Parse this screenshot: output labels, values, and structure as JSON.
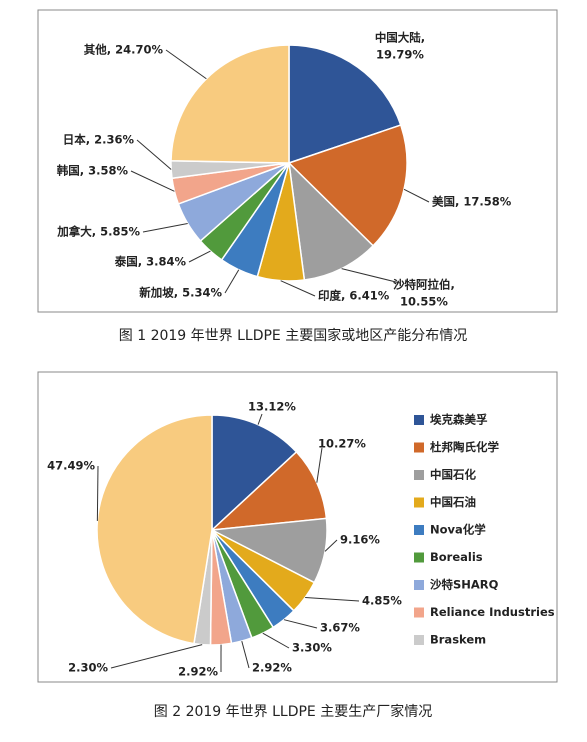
{
  "chart_data": [
    {
      "type": "pie",
      "caption": "图 1  2019 年世界 LLDPE 主要国家或地区产能分布情况",
      "values": [
        19.79,
        17.58,
        10.55,
        6.41,
        5.34,
        3.84,
        5.85,
        3.58,
        2.36,
        24.7
      ],
      "value_labels": [
        [
          "中国大陆,",
          "19.79%"
        ],
        [
          "美国, 17.58%"
        ],
        [
          "沙特阿拉伯,",
          "10.55%"
        ],
        [
          "印度, 6.41%"
        ],
        [
          "新加坡, 5.34%"
        ],
        [
          "泰国, 3.84%"
        ],
        [
          "加拿大, 5.85%"
        ],
        [
          "韩国, 3.58%"
        ],
        [
          "日本, 2.36%"
        ],
        [
          "其他, 24.70%"
        ]
      ],
      "colors": [
        "#2f5597",
        "#d0692a",
        "#9e9e9e",
        "#e3aa1c",
        "#3d7cc0",
        "#519a3c",
        "#8ea9db",
        "#f2a58b",
        "#cbcbcb",
        "#f8cb7f"
      ]
    },
    {
      "type": "pie",
      "caption": "图 2  2019 年世界 LLDPE 主要生产厂家情况",
      "categories": [
        "埃克森美孚",
        "杜邦陶氏化学",
        "中国石化",
        "中国石油",
        "Nova化学",
        "Borealis",
        "沙特SHARQ",
        "Reliance Industries",
        "Braskem",
        null
      ],
      "values": [
        13.12,
        10.27,
        9.16,
        4.85,
        3.67,
        3.3,
        2.92,
        2.92,
        2.3,
        47.49
      ],
      "value_labels": [
        "13.12%",
        "10.27%",
        "9.16%",
        "4.85%",
        "3.67%",
        "3.30%",
        "2.92%",
        "2.92%",
        "2.30%",
        "47.49%"
      ],
      "colors": [
        "#2f5597",
        "#d0692a",
        "#9e9e9e",
        "#e3aa1c",
        "#3d7cc0",
        "#519a3c",
        "#8ea9db",
        "#f2a58b",
        "#cbcbcb",
        "#f8cb7f"
      ],
      "legend": "right"
    }
  ]
}
